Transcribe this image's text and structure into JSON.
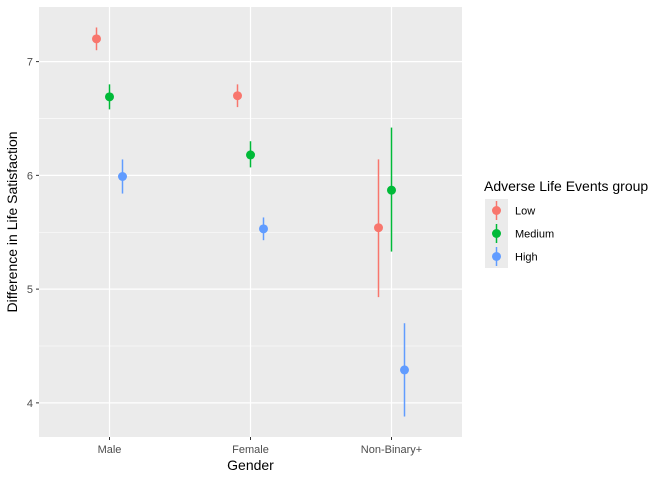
{
  "chart_data": {
    "type": "scatter",
    "subtype": "pointrange",
    "title": "",
    "xlabel": "Gender",
    "ylabel": "Difference in Life Satisfaction",
    "categories": [
      "Male",
      "Female",
      "Non-Binary+"
    ],
    "yticks": [
      4,
      5,
      6,
      7
    ],
    "ylim": [
      3.7,
      7.48
    ],
    "grid": true,
    "legend": {
      "title": "Adverse Life Events group",
      "position": "right"
    },
    "series": [
      {
        "name": "Low",
        "color": "#F8766D",
        "values": [
          7.2,
          6.7,
          5.54
        ],
        "lower": [
          7.1,
          6.6,
          4.93
        ],
        "upper": [
          7.3,
          6.8,
          6.14
        ]
      },
      {
        "name": "Medium",
        "color": "#00BA38",
        "values": [
          6.69,
          6.18,
          5.87
        ],
        "lower": [
          6.58,
          6.07,
          5.33
        ],
        "upper": [
          6.8,
          6.3,
          6.42
        ]
      },
      {
        "name": "High",
        "color": "#619CFF",
        "values": [
          5.99,
          5.53,
          4.29
        ],
        "lower": [
          5.84,
          5.43,
          3.88
        ],
        "upper": [
          6.14,
          5.63,
          4.7
        ]
      }
    ]
  }
}
